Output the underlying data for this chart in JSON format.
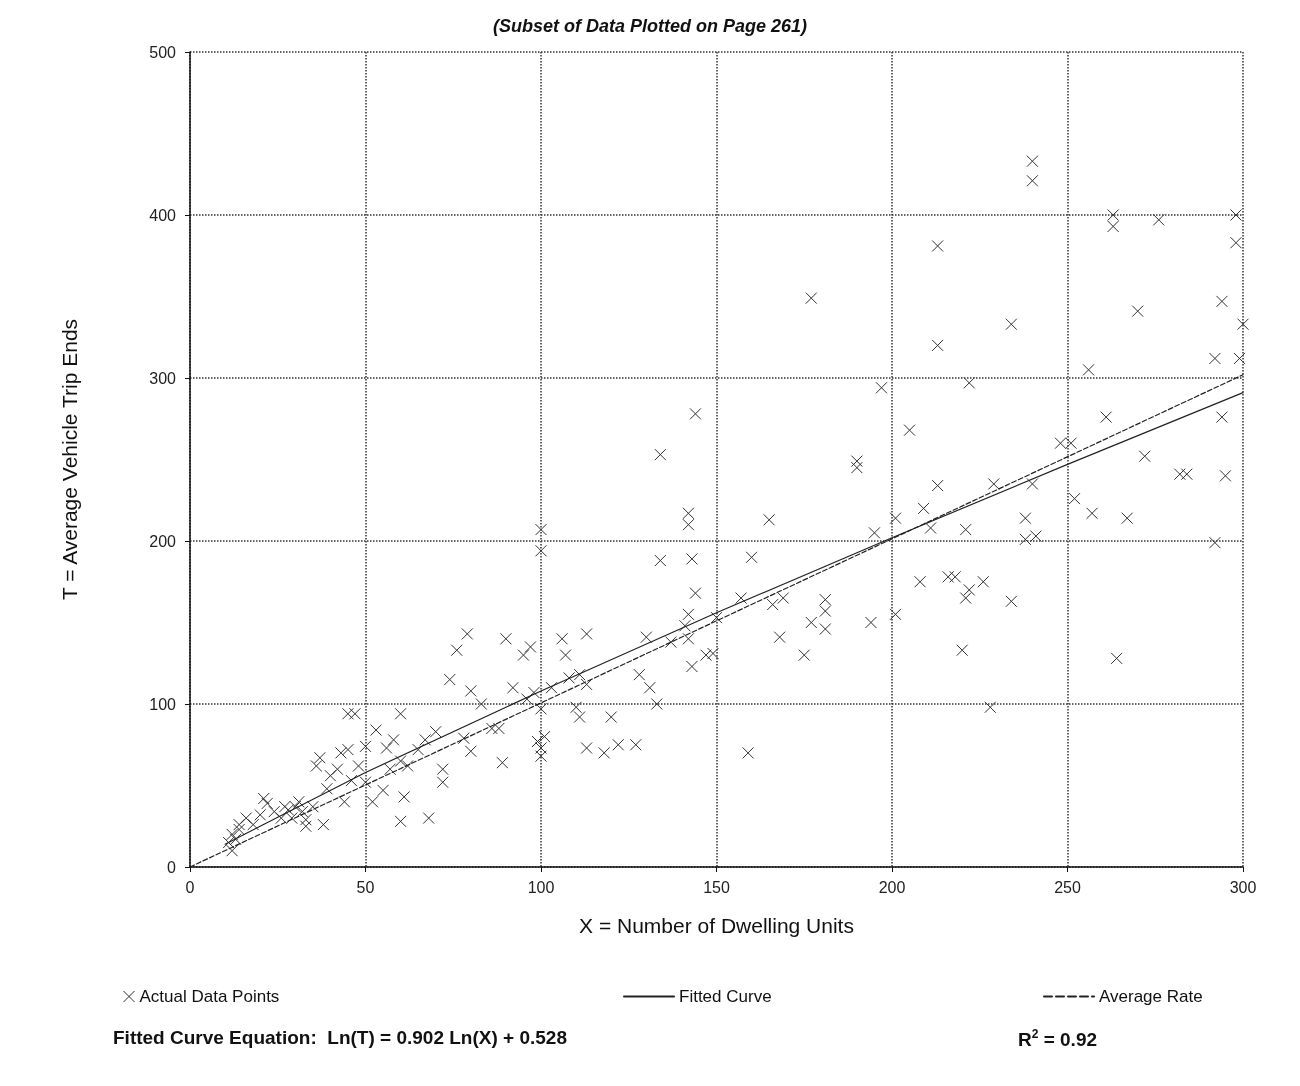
{
  "chart_data": {
    "type": "scatter",
    "title": "(Subset of Data Plotted on Page 261)",
    "xlabel": "X = Number of Dwelling Units",
    "ylabel": "T = Average Vehicle Trip Ends",
    "xlim": [
      0,
      300
    ],
    "xticks": [
      0,
      50,
      100,
      150,
      200,
      250,
      300
    ],
    "ylim": [
      0,
      500
    ],
    "yticks": [
      0,
      100,
      200,
      300,
      400,
      500
    ],
    "grid": true,
    "legend": "bottom",
    "annotations": [
      "Fitted Curve Equation:  Ln(T) = 0.902 Ln(X) + 0.528",
      "R$^{2}$ = 0.92"
    ],
    "series": [
      {
        "name": "Actual Data Points",
        "marker": "cross",
        "color": "#333333",
        "x": [
          240,
          240,
          263,
          263,
          276,
          298,
          298,
          300,
          294,
          270,
          234,
          213,
          213,
          222,
          197,
          177,
          256,
          261,
          292,
          299,
          294,
          205,
          190,
          190,
          248,
          251,
          272,
          213,
          229,
          240,
          238,
          238,
          241,
          209,
          211,
          201,
          195,
          221,
          252,
          257,
          267,
          282,
          284,
          295,
          292,
          208,
          216,
          218,
          222,
          221,
          226,
          234,
          201,
          194,
          220,
          264,
          228,
          181,
          181,
          181,
          177,
          175,
          169,
          166,
          165,
          160,
          157,
          168,
          159,
          144,
          134,
          142,
          142,
          134,
          143,
          144,
          142,
          141,
          142,
          143,
          147,
          149,
          150,
          130,
          137,
          128,
          131,
          133,
          127,
          120,
          122,
          118,
          113,
          111,
          113,
          106,
          107,
          108,
          110,
          111,
          113,
          100,
          100,
          97,
          95,
          90,
          92,
          96,
          98,
          100,
          103,
          99,
          100,
          101,
          100,
          89,
          86,
          88,
          83,
          80,
          79,
          76,
          74,
          78,
          80,
          72,
          72,
          70,
          68,
          60,
          58,
          60,
          61,
          60,
          56,
          57,
          55,
          53,
          52,
          50,
          48,
          46,
          45,
          47,
          45,
          43,
          42,
          40,
          39,
          38,
          37,
          36,
          35,
          33,
          32,
          31,
          30,
          29,
          28,
          27,
          26,
          22,
          21,
          20,
          18,
          16,
          14,
          13,
          12,
          12,
          11,
          14,
          24,
          33,
          44,
          50,
          62,
          65,
          67
        ],
        "values": [
          433,
          421,
          400,
          393,
          397,
          400,
          383,
          333,
          347,
          341,
          333,
          381,
          320,
          297,
          294,
          349,
          305,
          276,
          312,
          312,
          276,
          268,
          249,
          245,
          260,
          260,
          252,
          234,
          235,
          235,
          214,
          201,
          203,
          220,
          208,
          214,
          205,
          207,
          226,
          217,
          214,
          241,
          241,
          240,
          199,
          175,
          178,
          178,
          170,
          165,
          175,
          163,
          155,
          150,
          133,
          128,
          98,
          164,
          157,
          146,
          150,
          130,
          165,
          161,
          213,
          190,
          165,
          141,
          70,
          278,
          253,
          217,
          210,
          188,
          189,
          168,
          155,
          148,
          140,
          123,
          130,
          131,
          153,
          141,
          138,
          118,
          110,
          100,
          75,
          92,
          75,
          70,
          143,
          118,
          112,
          140,
          130,
          116,
          98,
          92,
          73,
          207,
          194,
          135,
          130,
          140,
          110,
          103,
          107,
          97,
          110,
          77,
          73,
          80,
          68,
          64,
          85,
          85,
          100,
          108,
          143,
          133,
          115,
          79,
          71,
          60,
          52,
          83,
          30,
          94,
          78,
          65,
          43,
          28,
          73,
          60,
          47,
          84,
          40,
          74,
          62,
          53,
          94,
          94,
          72,
          70,
          60,
          56,
          48,
          26,
          67,
          62,
          37,
          29,
          34,
          40,
          37,
          30,
          35,
          37,
          30,
          39,
          42,
          32,
          26,
          30,
          23,
          17,
          20,
          10,
          15,
          26,
          34,
          25,
          40,
          52,
          62,
          72,
          78
        ]
      },
      {
        "name": "Fitted Curve",
        "type": "line",
        "line_style": "solid",
        "color": "#222222",
        "x": [
          10,
          50,
          100,
          150,
          200,
          250,
          300
        ],
        "values": [
          14,
          58,
          108,
          156,
          202,
          247,
          291
        ]
      },
      {
        "name": "Average Rate",
        "type": "line",
        "line_style": "dashed",
        "color": "#222222",
        "x": [
          0,
          300
        ],
        "values": [
          0,
          302
        ]
      }
    ]
  }
}
